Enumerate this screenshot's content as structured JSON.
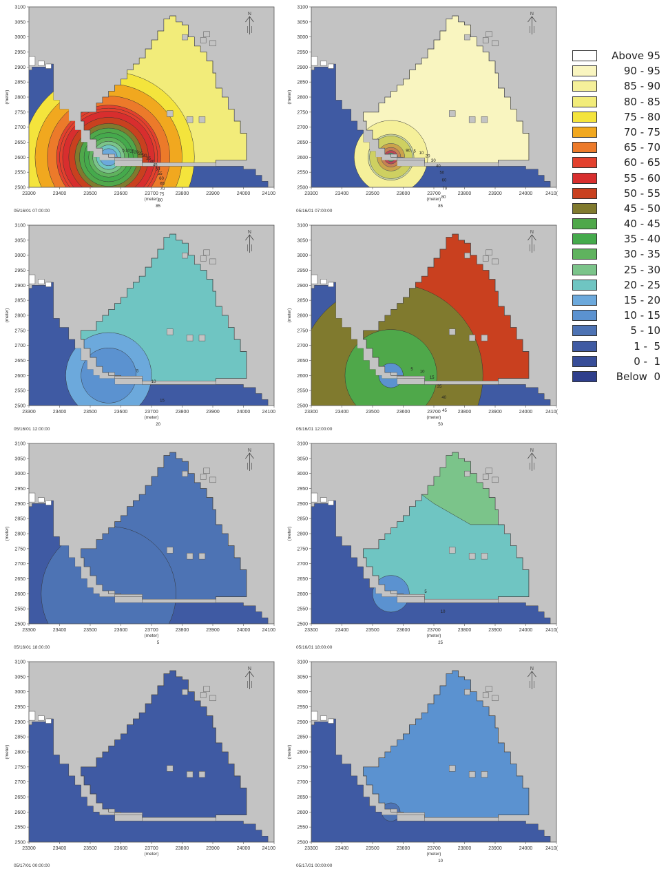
{
  "chart_data": {
    "type": "heatmap",
    "x_ticks": [
      23300,
      23400,
      23500,
      23600,
      23700,
      23800,
      23900,
      24000,
      24100
    ],
    "y_ticks": [
      2500,
      2550,
      2600,
      2650,
      2700,
      2750,
      2800,
      2850,
      2900,
      2950,
      3000,
      3050,
      3100
    ],
    "x_tick_labels": [
      "23300",
      "23400",
      "23500",
      "23600",
      "23700",
      "23800",
      "23900",
      "24000",
      "24100"
    ],
    "x_tick_labels_cut": [
      "23300",
      "23400",
      "23500",
      "23600",
      "23700",
      "23800",
      "23900",
      "24000",
      "2410("
    ],
    "y_tick_labels": [
      "2500",
      "2550",
      "2600",
      "2650",
      "2700",
      "2750",
      "2800",
      "2850",
      "2900",
      "2950",
      "3000",
      "3050",
      "3100"
    ],
    "xlabel": "(meter)",
    "ylabel": "(meter)",
    "xlim": [
      23300,
      24100
    ],
    "ylim": [
      2500,
      3100
    ],
    "north_label": "N",
    "panels": [
      {
        "id": "p1",
        "timestamp": "05/16/01 07:00:00",
        "fill": "#f2ec7a",
        "fillBand": "80 - 85",
        "plume": true,
        "contour_labels": [
          "85",
          "80",
          "75",
          "70",
          "65",
          "60",
          "55",
          "50",
          "45",
          "40",
          "35",
          "30",
          "25",
          "20",
          "15",
          "10",
          "5"
        ],
        "xcut": false
      },
      {
        "id": "p2",
        "timestamp": "05/16/01 07:00:00",
        "fill": "#f9f5c0",
        "fillBand": "90 - 95",
        "plume": true,
        "contour_labels": [
          "85",
          "80",
          "70",
          "60",
          "50",
          "40",
          "30",
          "20",
          "10",
          "5",
          "90"
        ],
        "xcut": true
      },
      {
        "id": "p3",
        "timestamp": "05/16/01 12:00:00",
        "fill": "#6fc5c2",
        "fillBand": "20 - 25",
        "plume": false,
        "contour_labels": [
          "20",
          "15",
          "10",
          "5"
        ],
        "xcut": false
      },
      {
        "id": "p4",
        "timestamp": "05/16/01 12:00:00",
        "fill": "#c9401f",
        "fillBand": "50 - 55",
        "plume": false,
        "contour_labels": [
          "50",
          "45",
          "40",
          "35",
          "15",
          "10",
          "5"
        ],
        "xcut": true
      },
      {
        "id": "p5",
        "timestamp": "05/16/01 18:00:00",
        "fill": "#4d73b4",
        "fillBand": "5 - 10",
        "plume": false,
        "contour_labels": [
          "5"
        ],
        "xcut": false
      },
      {
        "id": "p6",
        "timestamp": "05/16/01 18:00:00",
        "fill": "#6fc5c2",
        "fillBand": "20 - 25",
        "plume": false,
        "contour_labels": [
          "25",
          "10",
          "5"
        ],
        "xcut": true
      },
      {
        "id": "p7",
        "timestamp": "05/17/01 00:00:00",
        "fill": "#3f5aa3",
        "fillBand": "1 - 5",
        "plume": false,
        "contour_labels": [],
        "xcut": false
      },
      {
        "id": "p8",
        "timestamp": "05/17/01 00:00:00",
        "fill": "#5b92d0",
        "fillBand": "10 - 15",
        "plume": false,
        "contour_labels": [
          "10"
        ],
        "xcut": true
      }
    ],
    "legend": [
      {
        "label": "Above 95",
        "color": "#ffffff"
      },
      {
        "label": "90 - 95",
        "color": "#f9f5c0"
      },
      {
        "label": "85 - 90",
        "color": "#f5f09a"
      },
      {
        "label": "80 - 85",
        "color": "#f2ec7a"
      },
      {
        "label": "75 - 80",
        "color": "#f4e43c"
      },
      {
        "label": "70 - 75",
        "color": "#f1a81f"
      },
      {
        "label": "65 - 70",
        "color": "#ec7a2a"
      },
      {
        "label": "60 - 65",
        "color": "#e3402d"
      },
      {
        "label": "55 - 60",
        "color": "#d82e2e"
      },
      {
        "label": "50 - 55",
        "color": "#c9401f"
      },
      {
        "label": "45 - 50",
        "color": "#807a2e"
      },
      {
        "label": "40 - 45",
        "color": "#4fa84a"
      },
      {
        "label": "35 - 40",
        "color": "#45aa4c"
      },
      {
        "label": "30 - 35",
        "color": "#5fb35e"
      },
      {
        "label": "25 - 30",
        "color": "#7bc48a"
      },
      {
        "label": "20 - 25",
        "color": "#6fc5c2"
      },
      {
        "label": "15 - 20",
        "color": "#6ca9dc"
      },
      {
        "label": "10 - 15",
        "color": "#5b92d0"
      },
      {
        "label": "5 - 10",
        "color": "#4d73b4"
      },
      {
        "label": "1 -  5",
        "color": "#3f5aa3"
      },
      {
        "label": "0 -  1",
        "color": "#374d98"
      },
      {
        "label": "Below  0",
        "color": "#2f3f8c"
      }
    ],
    "land_color": "#c3c3c3",
    "sea_color": "#3f5aa3"
  }
}
